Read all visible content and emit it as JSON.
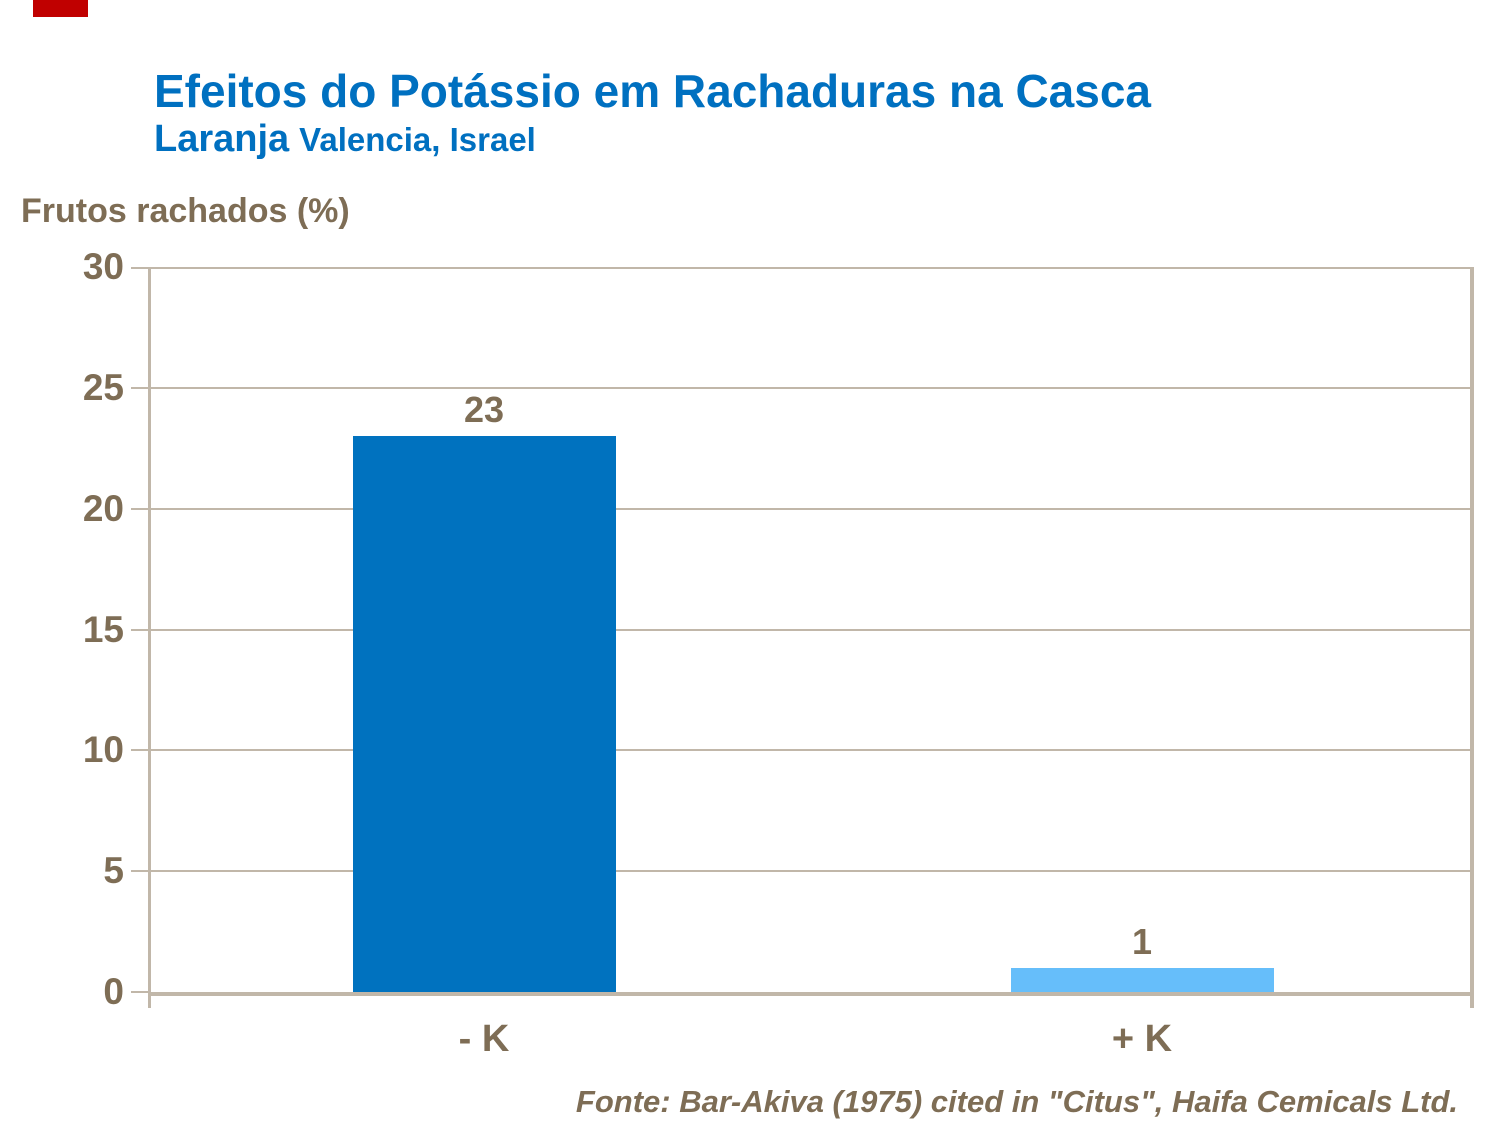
{
  "slide": {
    "background": "#FFFFFF",
    "accent_mark_color": "#C00000"
  },
  "header": {
    "title": "Efeitos do Potássio em Rachaduras na Casca",
    "subtitle_primary": "Laranja",
    "subtitle_secondary": "Valencia, Israel",
    "title_color": "#0070C0"
  },
  "chart_data": {
    "type": "bar",
    "title": "Efeitos do Potássio em Rachaduras na Casca",
    "subtitle": "Laranja Valencia, Israel",
    "ylabel": "Frutos rachados (%)",
    "xlabel": "",
    "categories": [
      "- K",
      "+ K"
    ],
    "values": [
      23,
      1
    ],
    "value_labels": [
      "23",
      "1"
    ],
    "bar_colors": [
      "#0072BF",
      "#66BEFA"
    ],
    "ylim": [
      0,
      30
    ],
    "yticks": [
      0,
      5,
      10,
      15,
      20,
      25,
      30
    ],
    "grid": true,
    "legend": false,
    "text_color": "#7E6D55",
    "axis_color": "#C1B7A9"
  },
  "footer": {
    "source": "Fonte: Bar-Akiva (1975) cited in \"Citus\", Haifa Cemicals Ltd."
  }
}
